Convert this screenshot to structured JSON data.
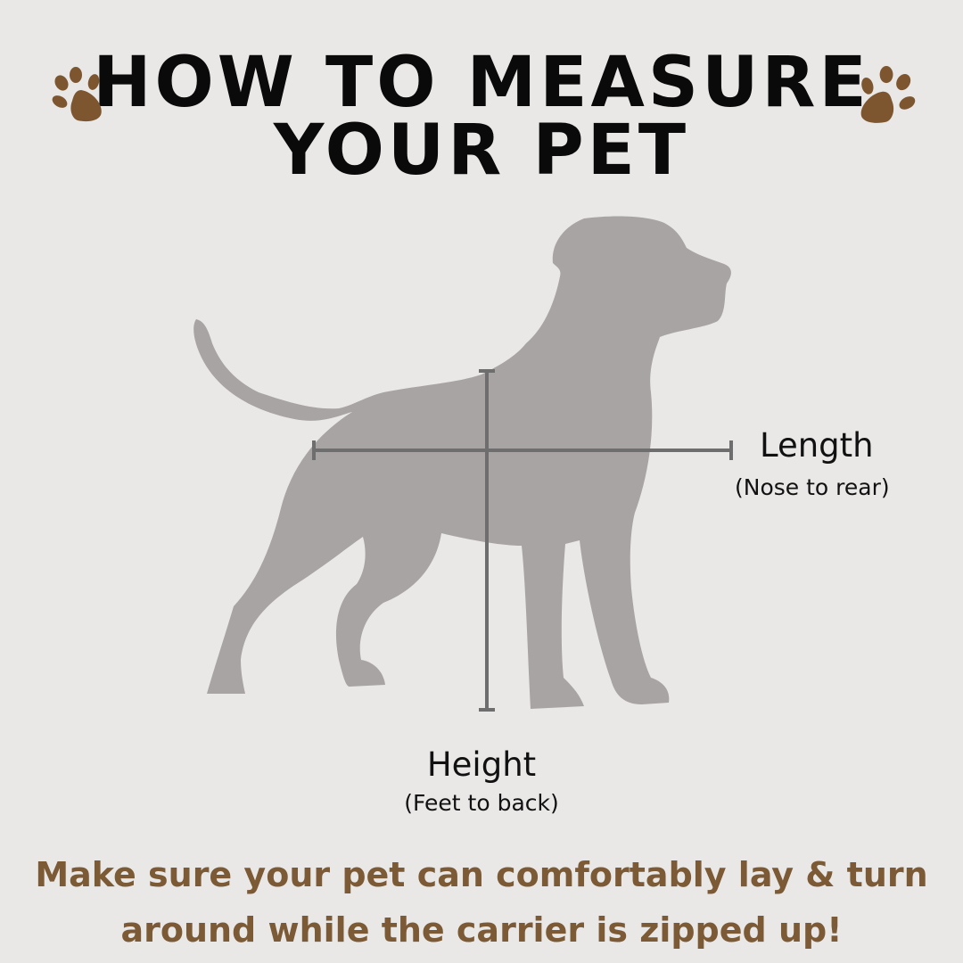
{
  "title": {
    "line1": "HOW TO MEASURE",
    "line2": "YOUR PET"
  },
  "icons": {
    "left": "paw-print-icon",
    "right": "paw-print-icon",
    "figure": "dog-silhouette"
  },
  "labels": {
    "length": "Length",
    "length_sub": "(Nose to rear)",
    "height": "Height",
    "height_sub": "(Feet to back)"
  },
  "note": {
    "line1": "Make sure your pet can comfortably lay & turn",
    "line2": "around while the carrier is zipped up!"
  },
  "colors": {
    "background": "#e9e8e7",
    "paw": "#7d5630",
    "dog": "#a8a4a3",
    "measure_line": "#6e6e6e",
    "note_text": "#7b5a35"
  }
}
